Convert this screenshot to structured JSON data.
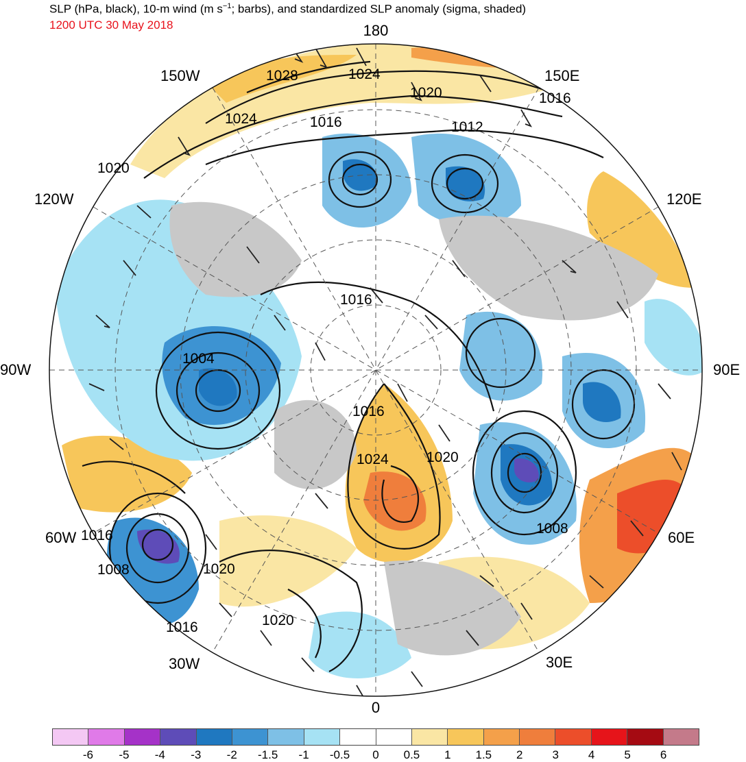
{
  "header": {
    "title_main": "SLP (hPa, black), 10-m wind (m s",
    "title_sup": "−1",
    "title_rest": "; barbs), and standardized SLP anomaly (sigma, shaded)",
    "valid_time": "1200 UTC 30 May 2018"
  },
  "map": {
    "longitude_labels": [
      "180",
      "150E",
      "120E",
      "90E",
      "60E",
      "30E",
      "0",
      "30W",
      "60W",
      "90W",
      "120W",
      "150W"
    ],
    "contour_labels": [
      "1028",
      "1024",
      "1020",
      "1016",
      "1024",
      "1016",
      "1012",
      "1020",
      "1016",
      "1004",
      "1016",
      "1020",
      "1024",
      "1008",
      "1016",
      "1008",
      "1020",
      "1016",
      "1020"
    ]
  },
  "legend": {
    "colors": [
      "#f4c8f4",
      "#e07ae8",
      "#a532c8",
      "#5e4cb8",
      "#1f78c0",
      "#3d93d2",
      "#7ec0e6",
      "#a6e2f4",
      "#ffffff",
      "#ffffff",
      "#fae6a4",
      "#f7c65a",
      "#f4a04a",
      "#ef7e3c",
      "#ec4e2a",
      "#e6141a",
      "#a50a12",
      "#c47a8a"
    ],
    "tick_labels": [
      "-6",
      "-5",
      "-4",
      "-3",
      "-2",
      "-1.5",
      "-1",
      "-0.5",
      "0",
      "0.5",
      "1",
      "1.5",
      "2",
      "3",
      "4",
      "5",
      "6"
    ]
  }
}
